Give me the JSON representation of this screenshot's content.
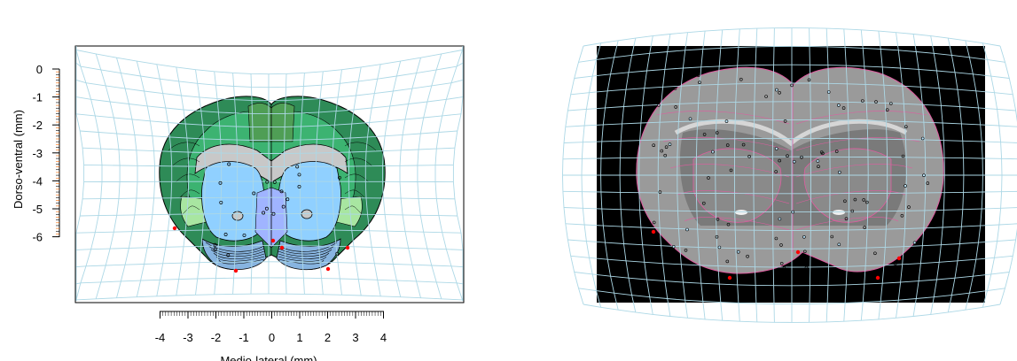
{
  "left_panel": {
    "y_axis": {
      "label": "Dorso-ventral (mm)",
      "ticks": [
        0,
        -1,
        -2,
        -3,
        -4,
        -5,
        -6
      ]
    },
    "x_axis": {
      "label": "Medio-lateral (mm)",
      "ticks": [
        -4,
        -3,
        -2,
        -1,
        0,
        1,
        2,
        3,
        4
      ]
    },
    "colors": {
      "grid": "#add8e6",
      "cortex_dark": "#2e8b57",
      "cortex_mid": "#3cb371",
      "hippocampus": "#90d0ff",
      "white_matter": "#c8c8c8",
      "ventral": "#87b4e0",
      "striatum_light": "#a8e6a1",
      "thalamus": "#a0b4ff",
      "landmark_red": "#ff0000"
    }
  },
  "right_panel": {
    "colors": {
      "background": "#000000",
      "tissue": "#9a9a9a",
      "grid": "#add8e6",
      "contour": "#e05ca0",
      "landmark_red": "#ff0000"
    }
  }
}
